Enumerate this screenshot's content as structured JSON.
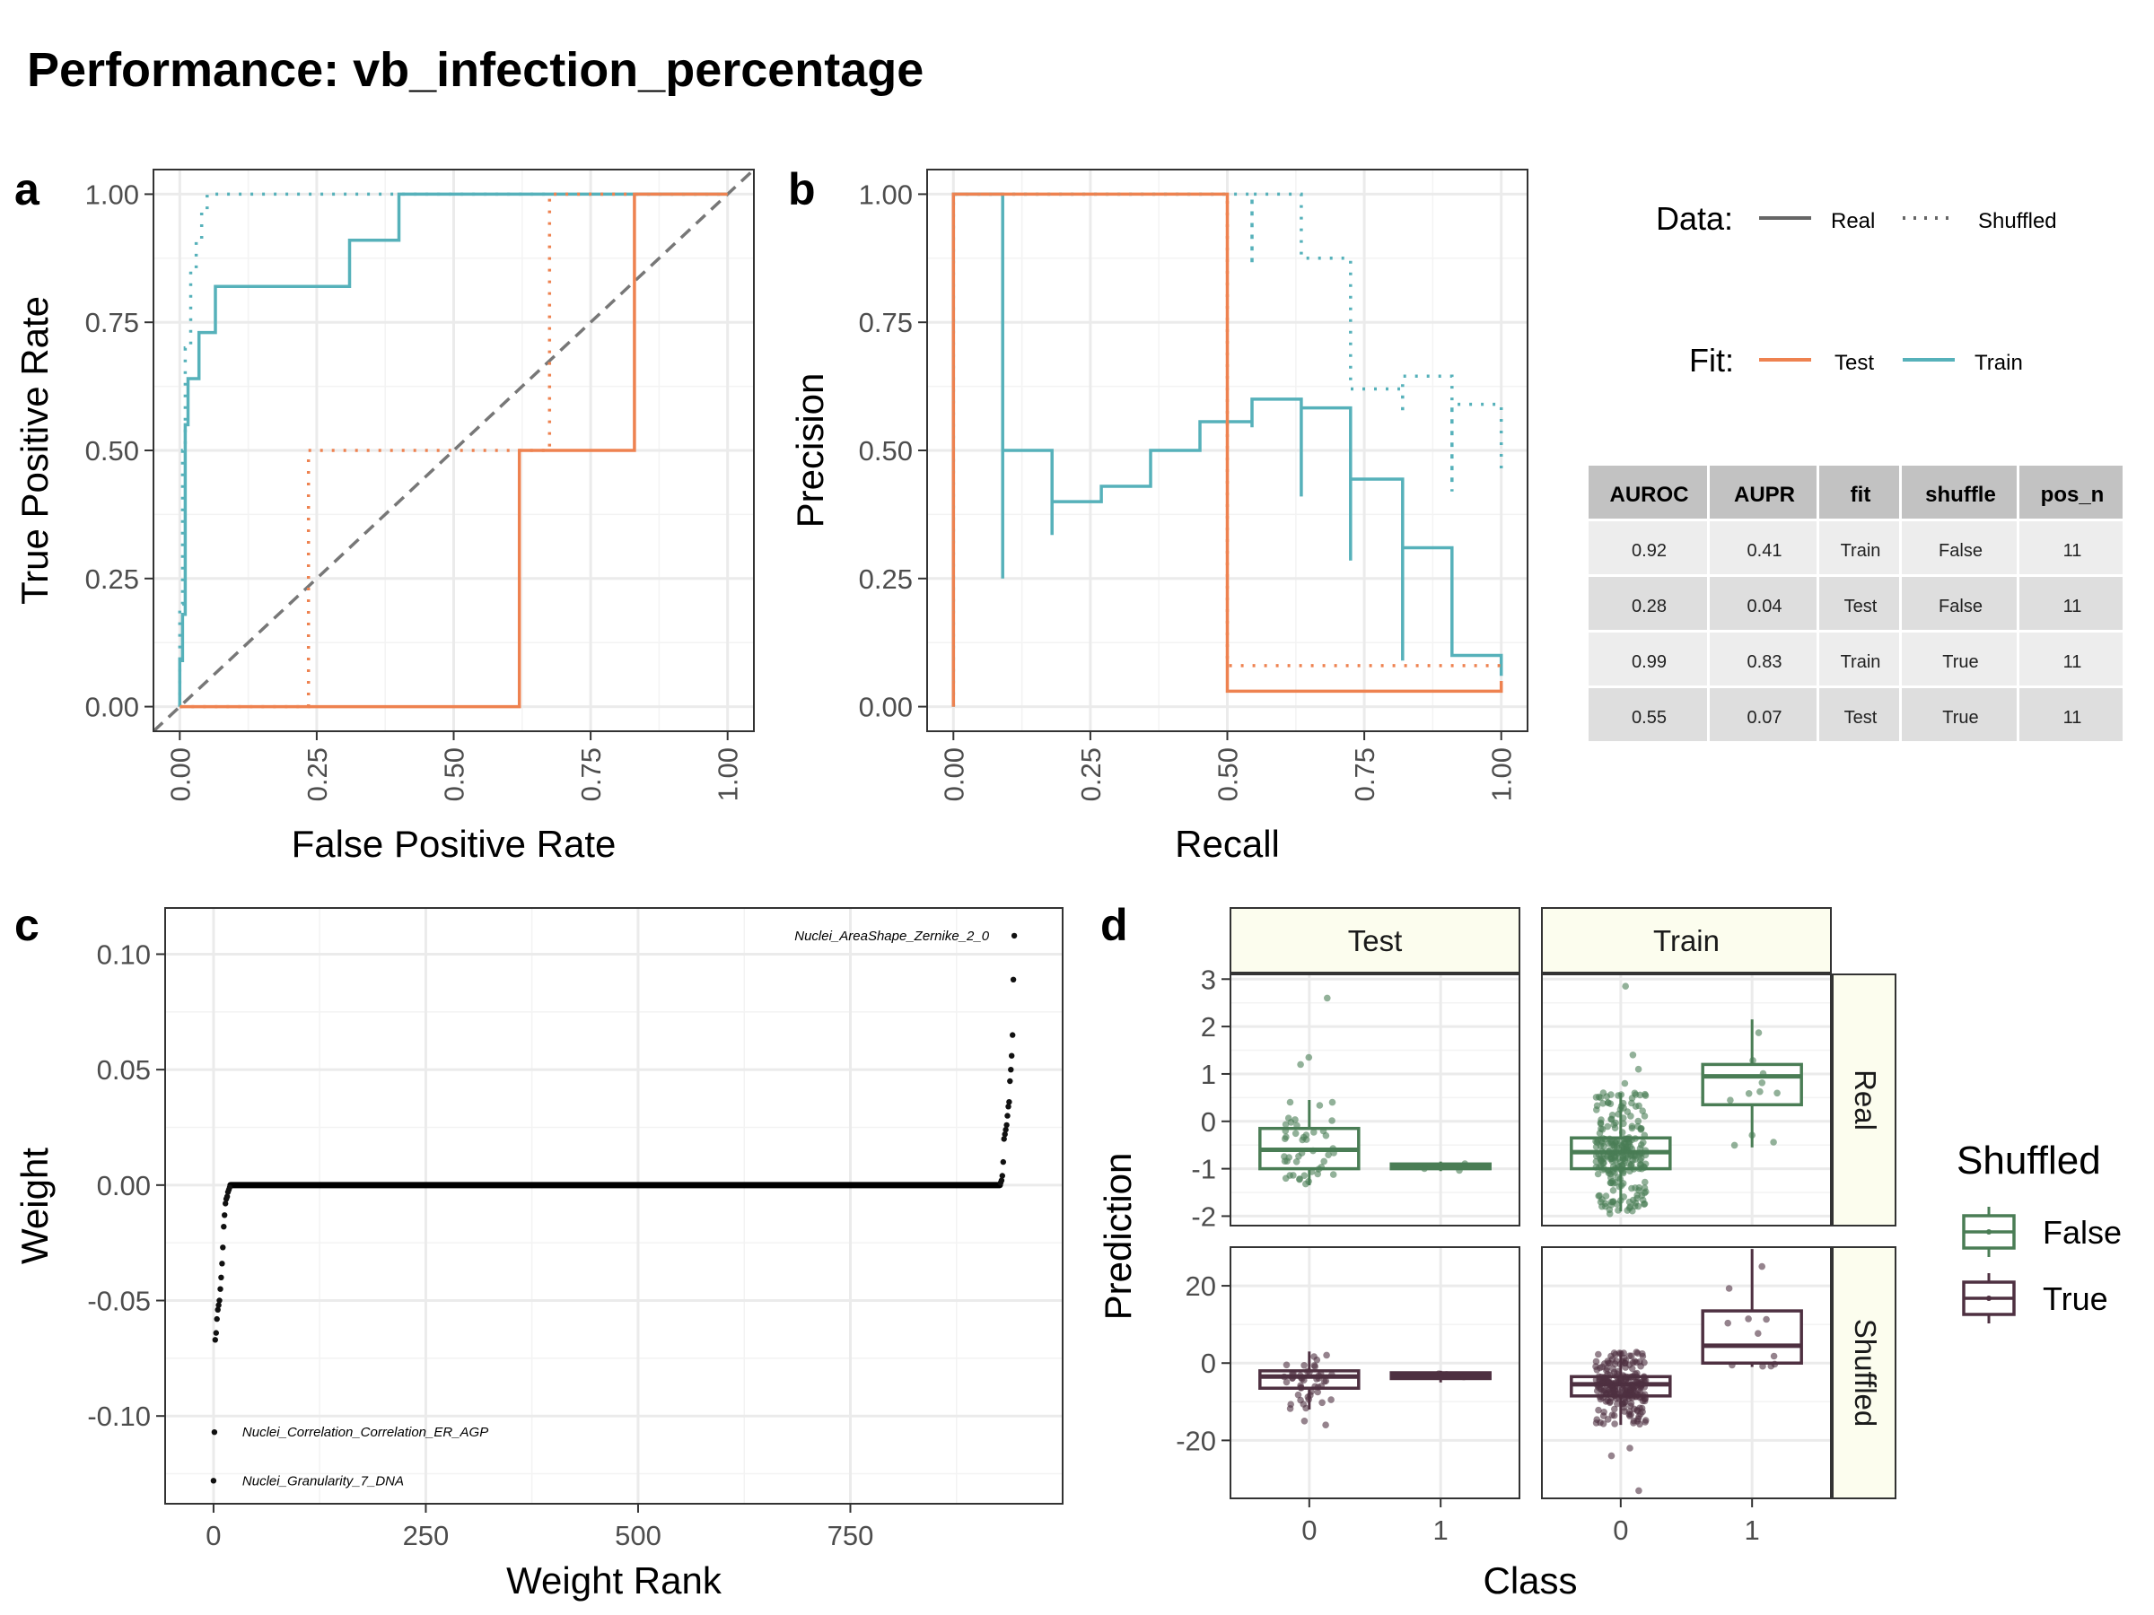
{
  "title": "Performance: vb_infection_percentage",
  "colors": {
    "test": "#EE8250",
    "train": "#56B1BA",
    "false": "#4A7D55",
    "true": "#4E3041",
    "strip": "#FCFDEE",
    "grid": "#EBEBEB",
    "point": "#000000",
    "diag": "#777777"
  },
  "legend": {
    "data_title": "Data:",
    "real": "Real",
    "shuffled": "Shuffled",
    "fit_title": "Fit:",
    "test": "Test",
    "train": "Train",
    "shuffled_title": "Shuffled",
    "false": "False",
    "true": "True"
  },
  "metrics_table": {
    "columns": [
      "AUROC",
      "AUPR",
      "fit",
      "shuffle",
      "pos_n"
    ],
    "rows": [
      [
        "0.92",
        "0.41",
        "Train",
        "False",
        "11"
      ],
      [
        "0.28",
        "0.04",
        "Test",
        "False",
        "11"
      ],
      [
        "0.99",
        "0.83",
        "Train",
        "True",
        "11"
      ],
      [
        "0.55",
        "0.07",
        "Test",
        "True",
        "11"
      ]
    ]
  },
  "chart_data": [
    {
      "panel": "a",
      "type": "line",
      "xlabel": "False Positive Rate",
      "ylabel": "True Positive Rate",
      "xlim": [
        0,
        1
      ],
      "ylim": [
        0,
        1
      ],
      "xticks": [
        "0.00",
        "0.25",
        "0.50",
        "0.75",
        "1.00"
      ],
      "yticks": [
        "0.00",
        "0.25",
        "0.50",
        "0.75",
        "1.00"
      ],
      "diagonal": true,
      "series": [
        {
          "name": "Train",
          "data": "Real",
          "x": [
            0,
            0,
            0.005,
            0.005,
            0.01,
            0.01,
            0.015,
            0.015,
            0.02,
            0.02,
            0.035,
            0.035,
            0.065,
            0.065,
            0.31,
            0.31,
            0.4,
            0.4,
            1
          ],
          "y": [
            0,
            0.09,
            0.09,
            0.18,
            0.18,
            0.55,
            0.55,
            0.64,
            0.64,
            0.64,
            0.64,
            0.73,
            0.73,
            0.82,
            0.82,
            0.91,
            0.91,
            1,
            1
          ]
        },
        {
          "name": "Test",
          "data": "Real",
          "x": [
            0,
            0.62,
            0.62,
            0.83,
            0.83,
            1
          ],
          "y": [
            0,
            0,
            0.5,
            0.5,
            1,
            1
          ]
        },
        {
          "name": "Train",
          "data": "Shuffled",
          "x": [
            0,
            0,
            0.005,
            0.005,
            0.01,
            0.01,
            0.02,
            0.02,
            0.03,
            0.03,
            0.04,
            0.04,
            0.05,
            0.05,
            1
          ],
          "y": [
            0,
            0.2,
            0.2,
            0.5,
            0.5,
            0.7,
            0.7,
            0.85,
            0.85,
            0.91,
            0.91,
            0.97,
            0.97,
            1,
            1
          ]
        },
        {
          "name": "Test",
          "data": "Shuffled",
          "x": [
            0,
            0.235,
            0.235,
            0.675,
            0.675,
            1
          ],
          "y": [
            0,
            0,
            0.5,
            0.5,
            1,
            1
          ]
        }
      ]
    },
    {
      "panel": "b",
      "type": "line",
      "xlabel": "Recall",
      "ylabel": "Precision",
      "xlim": [
        0,
        1
      ],
      "ylim": [
        0,
        1
      ],
      "xticks": [
        "0.00",
        "0.25",
        "0.50",
        "0.75",
        "1.00"
      ],
      "yticks": [
        "0.00",
        "0.25",
        "0.50",
        "0.75",
        "1.00"
      ],
      "series": [
        {
          "name": "Train",
          "data": "Real",
          "x": [
            0,
            0,
            0.09,
            0.09,
            0.09,
            0.09,
            0.18,
            0.18,
            0.18,
            0.18,
            0.27,
            0.27,
            0.36,
            0.36,
            0.45,
            0.45,
            0.545,
            0.545,
            0.545,
            0.545,
            0.635,
            0.635,
            0.635,
            0.635,
            0.725,
            0.725,
            0.725,
            0.725,
            0.82,
            0.82,
            0.82,
            0.82,
            0.91,
            0.91,
            1,
            1
          ],
          "y": [
            0,
            1,
            1,
            0.25,
            0.25,
            0.5,
            0.5,
            0.335,
            0.335,
            0.4,
            0.4,
            0.43,
            0.43,
            0.5,
            0.5,
            0.556,
            0.556,
            0.545,
            0.545,
            0.6,
            0.6,
            0.41,
            0.41,
            0.583,
            0.583,
            0.285,
            0.285,
            0.444,
            0.444,
            0.09,
            0.09,
            0.31,
            0.31,
            0.1,
            0.1,
            0.06
          ]
        },
        {
          "name": "Test",
          "data": "Real",
          "x": [
            0,
            0,
            0.5,
            0.5,
            1,
            1
          ],
          "y": [
            0,
            1,
            1,
            0.03,
            0.03,
            0.05
          ]
        },
        {
          "name": "Train",
          "data": "Shuffled",
          "x": [
            0,
            0,
            0.545,
            0.545,
            0.545,
            0.545,
            0.635,
            0.635,
            0.725,
            0.725,
            0.82,
            0.82,
            0.82,
            0.82,
            0.91,
            0.91,
            0.91,
            0.91,
            1,
            1
          ],
          "y": [
            0,
            1,
            1,
            0.86,
            0.86,
            1,
            1,
            0.875,
            0.875,
            0.62,
            0.62,
            0.57,
            0.57,
            0.645,
            0.645,
            0.42,
            0.42,
            0.59,
            0.59,
            0.45
          ]
        },
        {
          "name": "Test",
          "data": "Shuffled",
          "x": [
            0,
            0,
            0.5,
            0.5,
            1,
            1
          ],
          "y": [
            0,
            1,
            1,
            0.08,
            0.08,
            0.07
          ]
        }
      ]
    },
    {
      "panel": "c",
      "type": "scatter",
      "xlabel": "Weight Rank",
      "ylabel": "Weight",
      "xlim": [
        -57,
        1000
      ],
      "ylim": [
        -0.138,
        0.12
      ],
      "xticks": [
        0,
        250,
        500,
        750
      ],
      "xtick_labels": [
        "0",
        "250",
        "500",
        "750"
      ],
      "yticks": [
        0.1,
        0.05,
        0,
        -0.05,
        -0.1
      ],
      "ytick_labels": [
        "0.10",
        "0.05",
        "0.00",
        "-0.05",
        "-0.10"
      ],
      "n_points": 944,
      "low_tail": [
        -0.128,
        -0.107,
        -0.067,
        -0.064,
        -0.058,
        -0.054,
        -0.052,
        -0.05,
        -0.045,
        -0.04,
        -0.034,
        -0.027,
        -0.018,
        -0.013,
        -0.008,
        -0.006,
        -0.005,
        -0.003,
        -0.002,
        -0.001
      ],
      "high_tail": [
        0.001,
        0.002,
        0.004,
        0.01,
        0.02,
        0.022,
        0.024,
        0.026,
        0.03,
        0.034,
        0.036,
        0.045,
        0.05,
        0.056,
        0.065,
        0.089,
        0.108
      ],
      "annotations": [
        {
          "rank": 0,
          "weight": 0.108,
          "label": "Nuclei_AreaShape_Zernike_2_0",
          "anchor": "end"
        },
        {
          "rank": 0,
          "weight": -0.107,
          "label": "Nuclei_Correlation_Correlation_ER_AGP",
          "anchor": "start"
        },
        {
          "rank": 0,
          "weight": -0.128,
          "label": "Nuclei_Granularity_7_DNA",
          "anchor": "start"
        }
      ]
    },
    {
      "panel": "d",
      "type": "box",
      "xlabel": "Class",
      "ylabel": "Prediction",
      "facet_cols": [
        "Test",
        "Train"
      ],
      "facet_rows": [
        "Real",
        "Shuffled"
      ],
      "categories": [
        "0",
        "1"
      ],
      "rows": [
        {
          "name": "Real",
          "ylim": [
            -2.2,
            3.1
          ],
          "yticks": [
            3,
            2,
            1,
            0,
            -1,
            -2
          ],
          "ytick_labels": [
            "3",
            "2",
            "1",
            "0",
            "-1",
            "-2"
          ],
          "panels": {
            "Test": [
              {
                "class": "0",
                "min": -1.35,
                "q1": -1.0,
                "median": -0.6,
                "q3": -0.15,
                "max": 0.45,
                "outliers": [
                  1.2,
                  1.35,
                  2.6
                ],
                "n": 45
              },
              {
                "class": "1",
                "min": -1.05,
                "q1": -1.0,
                "median": -0.95,
                "q3": -0.9,
                "max": -0.85,
                "outliers": [],
                "n": 4
              }
            ],
            "Train": [
              {
                "class": "0",
                "min": -1.9,
                "q1": -1.0,
                "median": -0.65,
                "q3": -0.35,
                "max": 0.6,
                "outliers": [
                  0.8,
                  1.1,
                  1.4,
                  2.85,
                  -1.95
                ],
                "n": 250
              },
              {
                "class": "1",
                "min": -0.55,
                "q1": 0.35,
                "median": 0.95,
                "q3": 1.2,
                "max": 2.15,
                "outliers": [],
                "n": 11
              }
            ]
          }
        },
        {
          "name": "Shuffled",
          "ylim": [
            -35,
            30
          ],
          "yticks": [
            20,
            0,
            -20
          ],
          "ytick_labels": [
            "20",
            "0",
            "-20"
          ],
          "panels": {
            "Test": [
              {
                "class": "0",
                "min": -12,
                "q1": -6.5,
                "median": -3.5,
                "q3": -2,
                "max": 3,
                "outliers": [
                  -15,
                  -16
                ],
                "n": 45
              },
              {
                "class": "1",
                "min": -5,
                "q1": -4,
                "median": -3.2,
                "q3": -2.5,
                "max": -2,
                "outliers": [],
                "n": 4
              }
            ],
            "Train": [
              {
                "class": "0",
                "min": -16,
                "q1": -8.5,
                "median": -5.5,
                "q3": -3.5,
                "max": 3,
                "outliers": [
                  -22,
                  -24,
                  -33
                ],
                "n": 250
              },
              {
                "class": "1",
                "min": -1,
                "q1": 0,
                "median": 4.5,
                "q3": 13.5,
                "max": 29.5,
                "outliers": [],
                "n": 11
              }
            ]
          }
        }
      ]
    }
  ]
}
